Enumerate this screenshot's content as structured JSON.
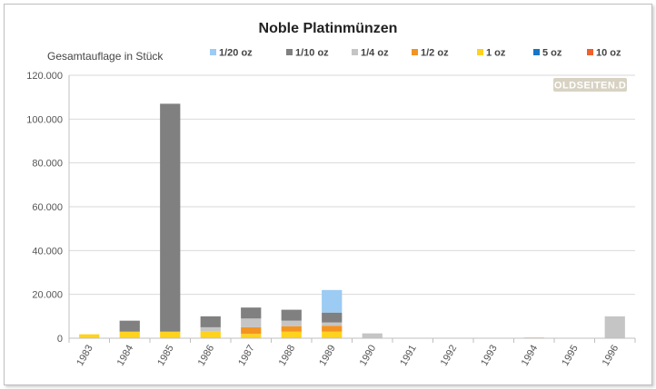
{
  "chart_data": {
    "type": "bar",
    "stacked": true,
    "title": "Noble Platinmünzen",
    "ylabel": "Gesamtauflage in Stück",
    "xlabel": "",
    "categories": [
      "1983",
      "1984",
      "1985",
      "1986",
      "1987",
      "1988",
      "1989",
      "1990",
      "1991",
      "1992",
      "1993",
      "1994",
      "1995",
      "1996"
    ],
    "ylim": [
      0,
      120000
    ],
    "yticks": [
      0,
      20000,
      40000,
      60000,
      80000,
      100000,
      120000
    ],
    "ytick_labels": [
      "0",
      "20.000",
      "40.000",
      "60.000",
      "80.000",
      "100.000",
      "120.000"
    ],
    "grid": true,
    "legend_position": "top",
    "series": [
      {
        "name": "1 oz",
        "color": "#ffd21f",
        "values": [
          1800,
          3000,
          3000,
          3000,
          2000,
          3000,
          3000,
          0,
          0,
          0,
          0,
          0,
          0,
          0
        ]
      },
      {
        "name": "1/2 oz",
        "color": "#f39322",
        "values": [
          0,
          0,
          0,
          0,
          3000,
          2500,
          2700,
          0,
          0,
          0,
          0,
          300,
          0,
          0
        ]
      },
      {
        "name": "1/4 oz",
        "color": "#c5c5c5",
        "values": [
          0,
          0,
          0,
          2000,
          4000,
          2500,
          1500,
          2200,
          0,
          0,
          0,
          0,
          0,
          10000
        ]
      },
      {
        "name": "1/10 oz",
        "color": "#808080",
        "values": [
          0,
          5000,
          104000,
          5000,
          5000,
          5000,
          4500,
          0,
          0,
          0,
          0,
          0,
          0,
          0
        ]
      },
      {
        "name": "1/20 oz",
        "color": "#9ccbf3",
        "values": [
          0,
          0,
          0,
          0,
          0,
          0,
          10300,
          0,
          0,
          0,
          0,
          0,
          0,
          0
        ]
      },
      {
        "name": "5 oz",
        "color": "#1876c6",
        "values": [
          0,
          0,
          0,
          0,
          0,
          0,
          0,
          0,
          0,
          0,
          0,
          0,
          0,
          0
        ]
      },
      {
        "name": "10 oz",
        "color": "#f0602a",
        "values": [
          0,
          0,
          0,
          0,
          0,
          0,
          0,
          0,
          0,
          0,
          0,
          0,
          0,
          0
        ]
      }
    ],
    "legend_order": [
      "1/20 oz",
      "1/10 oz",
      "1/4 oz",
      "1/2 oz",
      "1 oz",
      "5 oz",
      "10 oz"
    ],
    "watermark": "GOLDSEITEN.DE"
  }
}
